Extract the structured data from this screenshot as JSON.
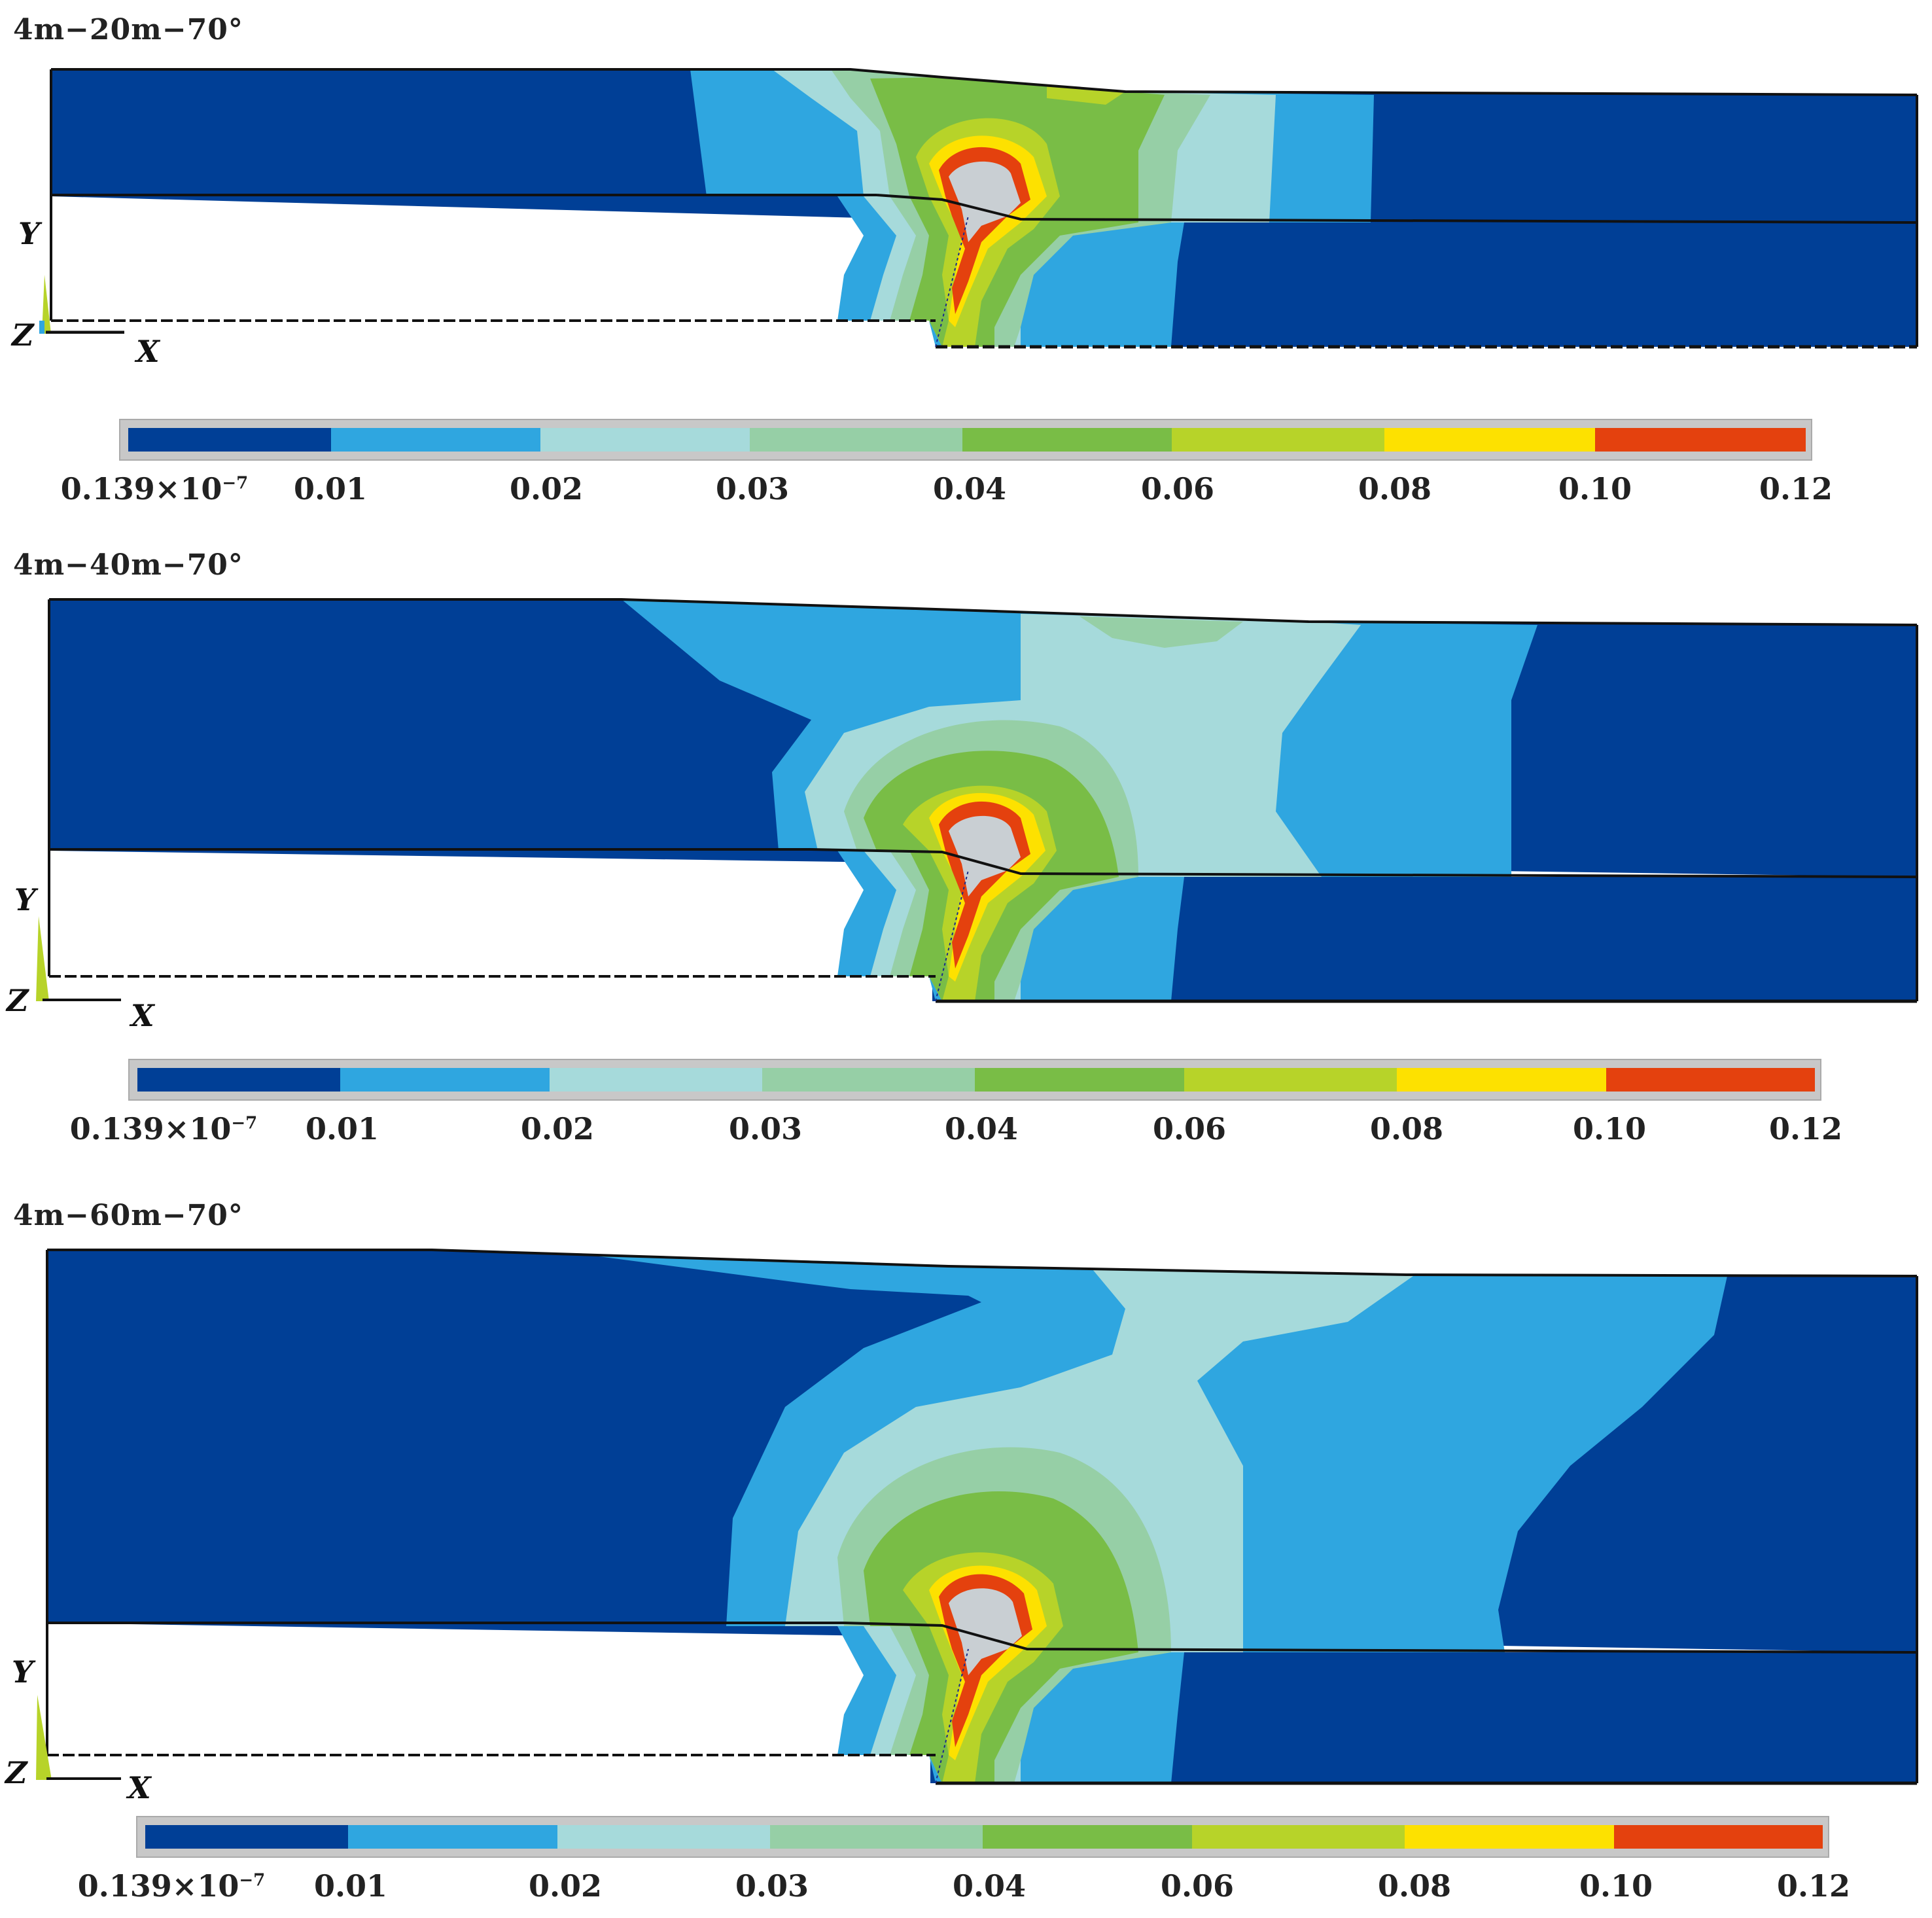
{
  "colors": {
    "level_0": "#003f96",
    "level_1": "#2fa6e0",
    "level_2": "#a6dadb",
    "level_3": "#96cfa6",
    "level_4": "#79bd46",
    "level_5": "#b7d329",
    "level_6": "#fde100",
    "level_7": "#e4410e",
    "cavity": "#c9cfd3",
    "outline": "#111111"
  },
  "legend": {
    "first_label": "0.139×10",
    "first_label_exponent": "−7",
    "labels": [
      "0.01",
      "0.02",
      "0.03",
      "0.04",
      "0.06",
      "0.08",
      "0.10",
      "0.12"
    ]
  },
  "axes": {
    "y": "Y",
    "z": "Z",
    "x": "X"
  },
  "panels": [
    {
      "title": "4m−20m−70°"
    },
    {
      "title": "4m−40m−70°"
    },
    {
      "title": "4m−60m−70°"
    }
  ]
}
